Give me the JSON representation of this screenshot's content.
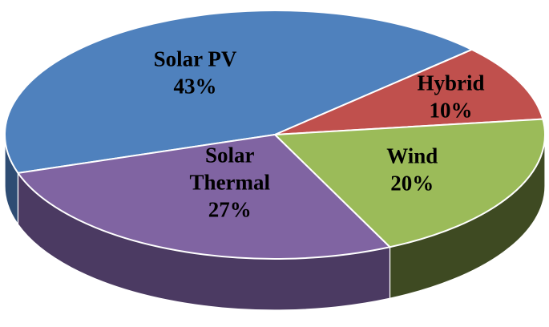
{
  "chart_data": {
    "type": "pie",
    "three_d": true,
    "legend": "none",
    "slices": [
      {
        "label_lines": [
          "Solar PV"
        ],
        "value": 43,
        "value_label": "43%",
        "color": "#4F81BD",
        "side_color": "#2E4C73"
      },
      {
        "label_lines": [
          "Hybrid"
        ],
        "value": 10,
        "value_label": "10%",
        "color": "#C0504D",
        "side_color": "#7A2F2D"
      },
      {
        "label_lines": [
          "Wind"
        ],
        "value": 20,
        "value_label": "20%",
        "color": "#9BBB59",
        "side_color": "#3E4A22"
      },
      {
        "label_lines": [
          "Solar",
          "Thermal"
        ],
        "value": 27,
        "value_label": "27%",
        "color": "#8064A2",
        "side_color": "#4B3A62"
      }
    ]
  }
}
